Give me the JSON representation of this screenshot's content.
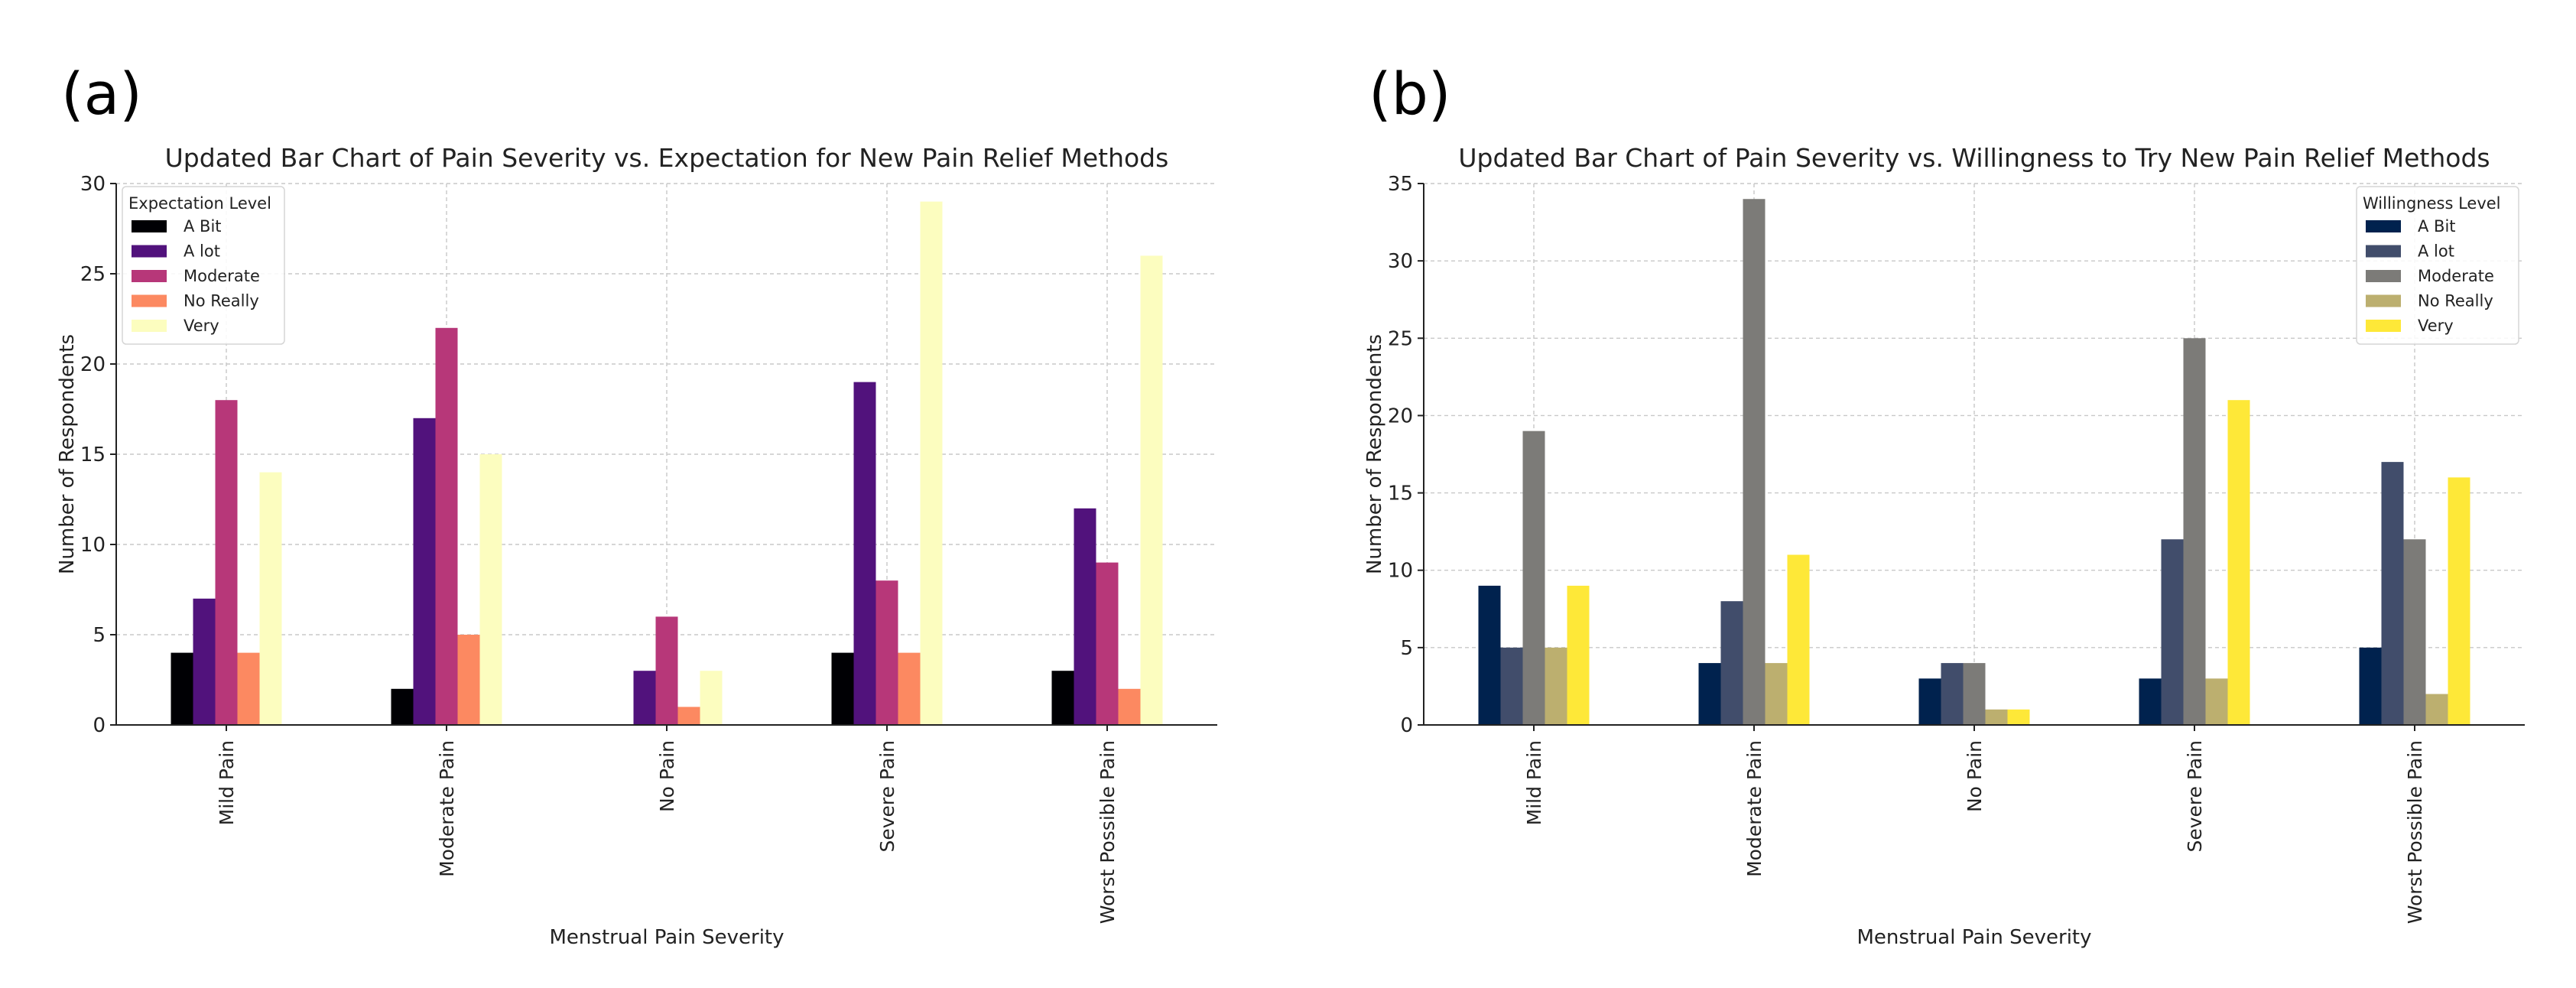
{
  "panels": {
    "a": {
      "label": "(a)"
    },
    "b": {
      "label": "(b)"
    }
  },
  "chart_data": [
    {
      "type": "bar",
      "title": "Updated Bar Chart of Pain Severity vs. Expectation for New Pain Relief Methods",
      "xlabel": "Menstrual Pain Severity",
      "ylabel": "Number of Respondents",
      "categories": [
        "Mild Pain",
        "Moderate Pain",
        "No Pain",
        "Severe Pain",
        "Worst Possible Pain"
      ],
      "ylim": [
        0,
        30
      ],
      "yticks": [
        0,
        5,
        10,
        15,
        20,
        25,
        30
      ],
      "grid": true,
      "legend": {
        "title": "Expectation Level",
        "placement": "top-left"
      },
      "series": [
        {
          "name": "A Bit",
          "color": "#000004",
          "values": [
            4,
            2,
            0,
            4,
            3
          ]
        },
        {
          "name": "A lot",
          "color": "#51127c",
          "values": [
            7,
            17,
            3,
            19,
            12
          ]
        },
        {
          "name": "Moderate",
          "color": "#b73779",
          "values": [
            18,
            22,
            6,
            8,
            9
          ]
        },
        {
          "name": "No Really",
          "color": "#fc8961",
          "values": [
            4,
            5,
            1,
            4,
            2
          ]
        },
        {
          "name": "Very",
          "color": "#fcfdbf",
          "values": [
            14,
            15,
            3,
            29,
            26
          ]
        }
      ]
    },
    {
      "type": "bar",
      "title": "Updated Bar Chart of Pain Severity vs. Willingness to Try New Pain Relief Methods",
      "xlabel": "Menstrual Pain Severity",
      "ylabel": "Number of Respondents",
      "categories": [
        "Mild Pain",
        "Moderate Pain",
        "No Pain",
        "Severe Pain",
        "Worst Possible Pain"
      ],
      "ylim": [
        0,
        35
      ],
      "yticks": [
        0,
        5,
        10,
        15,
        20,
        25,
        30,
        35
      ],
      "grid": true,
      "legend": {
        "title": "Willingness Level",
        "placement": "top-right"
      },
      "series": [
        {
          "name": "A Bit",
          "color": "#00224e",
          "values": [
            9,
            4,
            3,
            3,
            5
          ]
        },
        {
          "name": "A lot",
          "color": "#414d6b",
          "values": [
            5,
            8,
            4,
            12,
            17
          ]
        },
        {
          "name": "Moderate",
          "color": "#7c7b78",
          "values": [
            19,
            34,
            4,
            25,
            12
          ]
        },
        {
          "name": "No Really",
          "color": "#bcaf6f",
          "values": [
            5,
            4,
            1,
            3,
            2
          ]
        },
        {
          "name": "Very",
          "color": "#fee838",
          "values": [
            9,
            11,
            1,
            21,
            16
          ]
        }
      ]
    }
  ]
}
